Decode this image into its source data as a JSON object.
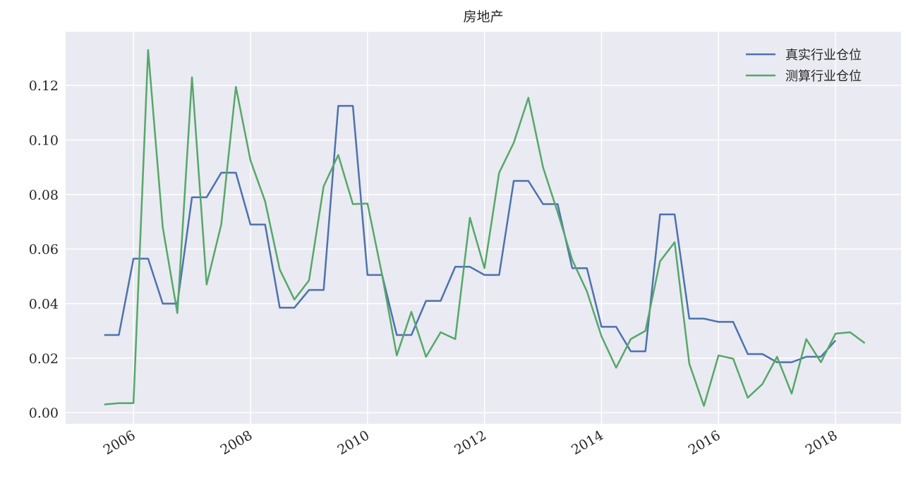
{
  "chart_data": {
    "type": "line",
    "title": "房地产",
    "x": [
      2005.5,
      2005.75,
      2006,
      2006.25,
      2006.5,
      2006.75,
      2007,
      2007.25,
      2007.5,
      2007.75,
      2008,
      2008.25,
      2008.5,
      2008.75,
      2009,
      2009.25,
      2009.5,
      2009.75,
      2010,
      2010.25,
      2010.5,
      2010.75,
      2011,
      2011.25,
      2011.5,
      2011.75,
      2012,
      2012.25,
      2012.5,
      2012.75,
      2013,
      2013.25,
      2013.5,
      2013.75,
      2014,
      2014.25,
      2014.5,
      2014.75,
      2015,
      2015.25,
      2015.5,
      2015.75,
      2016,
      2016.25,
      2016.5,
      2016.75,
      2017,
      2017.25,
      2017.5,
      2017.75,
      2018,
      2018.25,
      2018.5
    ],
    "series": [
      {
        "name": "真实行业仓位",
        "color": "#4c72b0",
        "values": [
          0.0285,
          0.0285,
          0.0565,
          0.0565,
          0.04,
          0.04,
          0.079,
          0.079,
          0.088,
          0.088,
          0.069,
          0.069,
          0.0385,
          0.0385,
          0.045,
          0.045,
          0.1125,
          0.1125,
          0.0505,
          0.0505,
          0.0285,
          0.0285,
          0.041,
          0.041,
          0.0535,
          0.0535,
          0.0505,
          0.0505,
          0.085,
          0.085,
          0.0765,
          0.0765,
          0.053,
          0.053,
          0.0315,
          0.0315,
          0.0225,
          0.0225,
          0.0727,
          0.0727,
          0.0345,
          0.0345,
          0.0333,
          0.0333,
          0.0215,
          0.0215,
          0.0185,
          0.0185,
          0.0205,
          0.0205,
          0.0265,
          null,
          null
        ]
      },
      {
        "name": "测算行业仓位",
        "color": "#55a868",
        "values": [
          0.003,
          0.0035,
          0.0035,
          0.133,
          0.068,
          0.0365,
          0.123,
          0.047,
          0.069,
          0.1195,
          0.0925,
          0.0775,
          0.0525,
          0.0415,
          0.0485,
          0.083,
          0.0945,
          0.0765,
          0.0767,
          0.0505,
          0.021,
          0.037,
          0.0205,
          0.0295,
          0.027,
          0.0715,
          0.053,
          0.088,
          0.099,
          0.1155,
          0.09,
          0.0735,
          0.056,
          0.0445,
          0.028,
          0.0165,
          0.027,
          0.03,
          0.0555,
          0.0625,
          0.018,
          0.0025,
          0.021,
          0.0198,
          0.0055,
          0.0105,
          0.0205,
          0.007,
          0.027,
          0.0185,
          0.029,
          0.0295,
          0.0255
        ]
      }
    ],
    "xlim": [
      2004.84,
      2019.12
    ],
    "xticks": [
      2006,
      2008,
      2010,
      2012,
      2014,
      2016,
      2018
    ],
    "ylim": [
      -0.0041,
      0.1397
    ],
    "yticks": [
      {
        "value": 0,
        "label": "0.00"
      },
      0.02,
      0.04,
      0.06,
      0.08,
      {
        "value": 0.1,
        "label": "0.10"
      },
      0.12
    ],
    "grid": true,
    "legend": "upper right"
  }
}
